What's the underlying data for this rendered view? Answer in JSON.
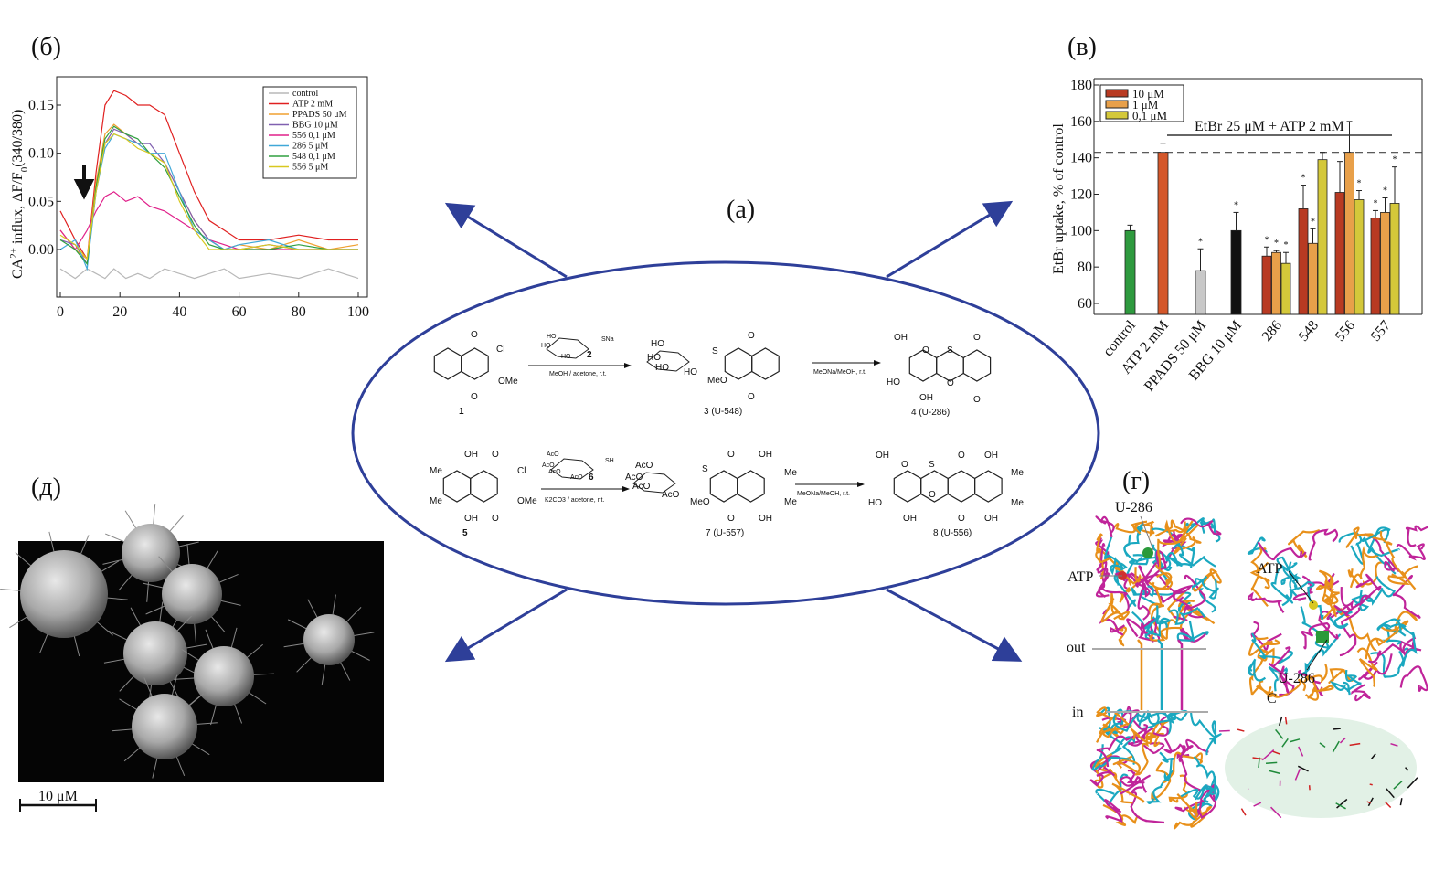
{
  "panels": {
    "a": "(а)",
    "b": "(б)",
    "v": "(в)",
    "g": "(г)",
    "d": "(д)"
  },
  "colors": {
    "arrow": "#2e3f99",
    "ellipse": "#2e3f99"
  },
  "scheme": {
    "c1": {
      "id": "1",
      "cl": "Cl",
      "ome": "OMe",
      "o1": "O",
      "o2": "O"
    },
    "r1": {
      "reagent_id": "2",
      "sna": "SNa",
      "ho": "HO",
      "conditions": "MeOH / acetone, r.t."
    },
    "c3": {
      "label": "3 (U-548)",
      "s": "S",
      "o": "O",
      "ho": "HO",
      "meo": "MeO",
      "o1": "O",
      "o2": "O"
    },
    "r2": {
      "conditions": "MeONa/MeOH, r.t."
    },
    "c4": {
      "label": "4 (U-286)",
      "oh": "OH",
      "o": "O",
      "s": "S",
      "ho": "HO",
      "o1": "O",
      "o2": "O"
    },
    "c5": {
      "id": "5",
      "oh": "OH",
      "o": "O",
      "cl": "Cl",
      "me": "Me",
      "ome": "OMe"
    },
    "r3": {
      "reagent_id": "6",
      "aco": "AcO",
      "sh": "SH",
      "conditions": "K2CO3 / acetone, r.t."
    },
    "c7": {
      "label": "7 (U-557)",
      "aco": "AcO",
      "s": "S",
      "o": "O",
      "oh": "OH",
      "me": "Me",
      "meo": "MeO"
    },
    "r4": {
      "conditions": "MeONa/MeOH, r.t."
    },
    "c8": {
      "label": "8 (U-556)",
      "oh": "OH",
      "o": "O",
      "s": "S",
      "me": "Me",
      "ho": "HO"
    }
  },
  "chart_data": [
    {
      "type": "line",
      "ylabel_parts": [
        "CA",
        "2+",
        " influx, ΔF/F",
        "0",
        "(340/380)"
      ],
      "xlim": [
        0,
        104
      ],
      "ylim": [
        -0.05,
        0.18
      ],
      "xticks": [
        "0",
        "20",
        "40",
        "60",
        "80",
        "100"
      ],
      "yticks": [
        "0.00",
        "0.05",
        "0.10",
        "0.15"
      ],
      "grid": false,
      "legend": "top-right",
      "annotation": "down arrow at stimulus (x≈9)",
      "x": [
        0,
        5,
        9,
        12,
        15,
        18,
        22,
        26,
        30,
        35,
        40,
        45,
        50,
        55,
        60,
        70,
        80,
        90,
        100
      ],
      "series": [
        {
          "name": "control",
          "color": "#b8b8b8",
          "values": [
            -0.02,
            -0.03,
            -0.02,
            -0.025,
            -0.03,
            -0.02,
            -0.03,
            -0.025,
            -0.03,
            -0.02,
            -0.025,
            -0.03,
            -0.025,
            -0.02,
            -0.03,
            -0.025,
            -0.03,
            -0.02,
            -0.03
          ]
        },
        {
          "name": "ATP 2 mM",
          "color": "#e02020",
          "values": [
            0.04,
            0.01,
            -0.01,
            0.08,
            0.15,
            0.165,
            0.16,
            0.15,
            0.15,
            0.14,
            0.1,
            0.06,
            0.03,
            0.02,
            0.01,
            0.01,
            0.015,
            0.01,
            0.01
          ]
        },
        {
          "name": "PPADS 50 μM",
          "color": "#f0a030",
          "values": [
            0.02,
            0.0,
            -0.01,
            0.07,
            0.12,
            0.13,
            0.12,
            0.11,
            0.1,
            0.09,
            0.06,
            0.03,
            0.01,
            0.0,
            0.005,
            0.0,
            0.01,
            0.0,
            0.005
          ]
        },
        {
          "name": "BBG 10 μM",
          "color": "#8060b0",
          "values": [
            0.01,
            0.005,
            -0.015,
            0.06,
            0.11,
            0.125,
            0.12,
            0.11,
            0.11,
            0.09,
            0.06,
            0.03,
            0.01,
            0.0,
            0.0,
            0.005,
            0.0,
            0.0,
            0.0
          ]
        },
        {
          "name": "556 0,1 μM",
          "color": "#e0208a",
          "values": [
            0.02,
            0.0,
            0.02,
            0.04,
            0.055,
            0.06,
            0.05,
            0.055,
            0.045,
            0.04,
            0.03,
            0.02,
            0.01,
            0.005,
            0.0,
            0.0,
            0.0,
            0.0,
            0.0
          ]
        },
        {
          "name": "286 5 μM",
          "color": "#40a8d8",
          "values": [
            0.0,
            0.01,
            -0.02,
            0.06,
            0.105,
            0.12,
            0.115,
            0.11,
            0.1,
            0.1,
            0.06,
            0.02,
            0.01,
            0.0,
            0.005,
            0.01,
            0.0,
            0.0,
            0.0
          ]
        },
        {
          "name": "548 0,1 μM",
          "color": "#30a040",
          "values": [
            0.01,
            0.0,
            -0.015,
            0.065,
            0.115,
            0.128,
            0.12,
            0.115,
            0.1,
            0.085,
            0.055,
            0.025,
            0.005,
            0.0,
            0.0,
            0.0,
            0.005,
            0.0,
            0.0
          ]
        },
        {
          "name": "556 5 μM",
          "color": "#d8c820",
          "values": [
            0.015,
            0.005,
            -0.01,
            0.06,
            0.11,
            0.12,
            0.115,
            0.105,
            0.1,
            0.09,
            0.05,
            0.02,
            0.0,
            0.0,
            0.0,
            0.005,
            0.0,
            0.0,
            0.0
          ]
        }
      ]
    },
    {
      "type": "bar",
      "ylabel": "EtBr uptake, % of control",
      "ylim": [
        54,
        182
      ],
      "yticks": [
        "60",
        "80",
        "100",
        "120",
        "140",
        "160",
        "180"
      ],
      "annotation": "EtBr 25 μM + ATP 2 mM",
      "reference_line": 143,
      "legend": "top-left",
      "legend_entries": [
        {
          "name": "10 μM",
          "color": "#b83a22"
        },
        {
          "name": "1 μM",
          "color": "#e8a04a"
        },
        {
          "name": "0,1 μM",
          "color": "#d4c83a"
        }
      ],
      "categories": [
        "control",
        "ATP 2 mM",
        "PPADS 50 μM",
        "BBG 10 μM",
        "286",
        "548",
        "556",
        "557"
      ],
      "single": [
        {
          "value": 100,
          "error": 3,
          "color": "#2e9a3e",
          "star": false
        },
        {
          "value": 143,
          "error": 5,
          "color": "#d4572a",
          "star": false
        },
        {
          "value": 78,
          "error": 12,
          "color": "#c8c8c8",
          "star": true
        },
        {
          "value": 100,
          "error": 10,
          "color": "#111111",
          "star": true
        }
      ],
      "grouped": [
        {
          "values": [
            86,
            88,
            82
          ],
          "errors": [
            5,
            1,
            6
          ],
          "stars": [
            true,
            true,
            true
          ]
        },
        {
          "values": [
            112,
            93,
            139
          ],
          "errors": [
            13,
            8,
            4
          ],
          "stars": [
            true,
            true,
            false
          ]
        },
        {
          "values": [
            121,
            143,
            117
          ],
          "errors": [
            17,
            17,
            5
          ],
          "stars": [
            false,
            false,
            true
          ]
        },
        {
          "values": [
            107,
            110,
            115
          ],
          "errors": [
            4,
            8,
            20
          ],
          "stars": [
            true,
            true,
            true
          ]
        }
      ]
    }
  ],
  "protein": {
    "u286_a": "U-286",
    "atp_a": "ATP",
    "out": "out",
    "in": "in",
    "atp_b": "ATP",
    "u286_b": "U-286",
    "c": "C"
  },
  "sem": {
    "scale": "10 μM"
  }
}
